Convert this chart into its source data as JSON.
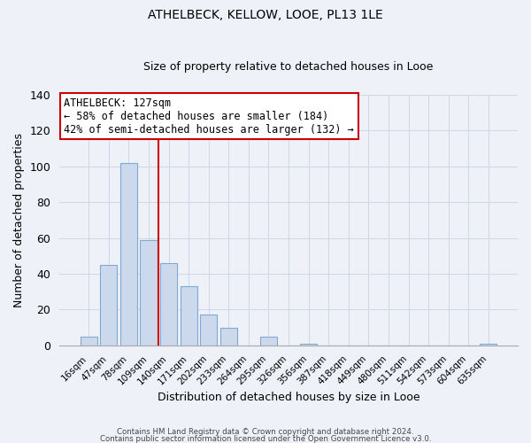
{
  "title": "ATHELBECK, KELLOW, LOOE, PL13 1LE",
  "subtitle": "Size of property relative to detached houses in Looe",
  "xlabel": "Distribution of detached houses by size in Looe",
  "ylabel": "Number of detached properties",
  "bar_color": "#ccd9ed",
  "bar_edge_color": "#7fa8d4",
  "categories": [
    "16sqm",
    "47sqm",
    "78sqm",
    "109sqm",
    "140sqm",
    "171sqm",
    "202sqm",
    "233sqm",
    "264sqm",
    "295sqm",
    "326sqm",
    "356sqm",
    "387sqm",
    "418sqm",
    "449sqm",
    "480sqm",
    "511sqm",
    "542sqm",
    "573sqm",
    "604sqm",
    "635sqm"
  ],
  "values": [
    5,
    45,
    102,
    59,
    46,
    33,
    17,
    10,
    0,
    5,
    0,
    1,
    0,
    0,
    0,
    0,
    0,
    0,
    0,
    0,
    1
  ],
  "ylim": [
    0,
    140
  ],
  "yticks": [
    0,
    20,
    40,
    60,
    80,
    100,
    120,
    140
  ],
  "annotation_title": "ATHELBECK: 127sqm",
  "annotation_line1": "← 58% of detached houses are smaller (184)",
  "annotation_line2": "42% of semi-detached houses are larger (132) →",
  "annotation_box_color": "#ffffff",
  "annotation_box_edge": "#cc0000",
  "red_line_x": 3.5,
  "footer_line1": "Contains HM Land Registry data © Crown copyright and database right 2024.",
  "footer_line2": "Contains public sector information licensed under the Open Government Licence v3.0.",
  "background_color": "#eef2f8",
  "grid_color": "#d0d8e8",
  "title_fontsize": 10,
  "subtitle_fontsize": 9
}
